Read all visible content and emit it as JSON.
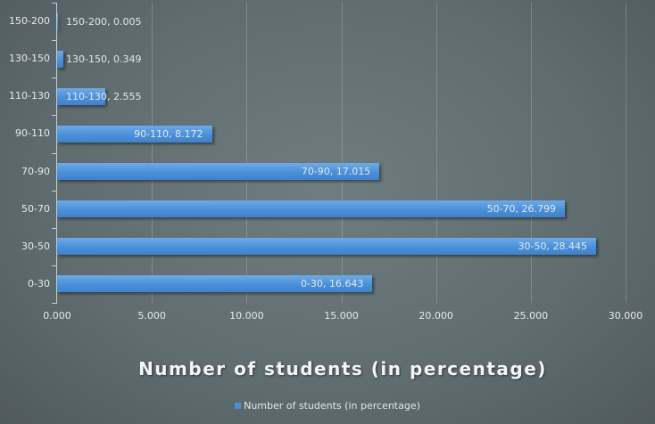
{
  "chart_data": {
    "type": "bar",
    "orientation": "horizontal",
    "title": "Number of students (in percentage)",
    "xlabel": "",
    "ylabel": "",
    "categories": [
      "0-30",
      "30-50",
      "50-70",
      "70-90",
      "90-110",
      "110-130",
      "130-150",
      "150-200"
    ],
    "values": [
      16.643,
      28.445,
      26.799,
      17.015,
      8.172,
      2.555,
      0.349,
      0.005
    ],
    "series": [
      {
        "name": "Number of students (in percentage)",
        "color": "#4a90d9",
        "values": [
          16.643,
          28.445,
          26.799,
          17.015,
          8.172,
          2.555,
          0.349,
          0.005
        ]
      }
    ],
    "xlim": [
      0,
      30
    ],
    "x_ticks": [
      "0.000",
      "5.000",
      "10.000",
      "15.000",
      "20.000",
      "25.000",
      "30.000"
    ],
    "data_labels": [
      "0-30, 16.643",
      "30-50, 28.445",
      "50-70, 26.799",
      "70-90, 17.015",
      "90-110, 8.172",
      "110-130, 2.555",
      "130-150, 0.349",
      "150-200, 0.005"
    ],
    "grid": "vertical",
    "legend_position": "bottom"
  },
  "title": "Number of students (in percentage)",
  "legend": {
    "label": "Number of students (in percentage)"
  }
}
